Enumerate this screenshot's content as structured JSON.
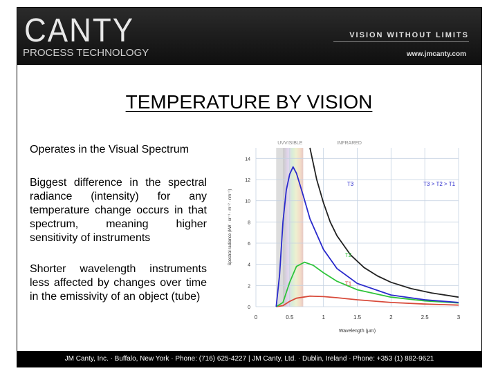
{
  "header": {
    "logo": "CANTY",
    "subtitle": "PROCESS TECHNOLOGY",
    "tagline": "VISION WITHOUT LIMITS",
    "website": "www.jmcanty.com"
  },
  "slide": {
    "title": "TEMPERATURE BY VISION",
    "paragraphs": [
      "Operates in the Visual Spectrum",
      "Biggest difference in the spectral radiance (intensity) for any temperature change occurs in that spectrum, meaning higher sensitivity of instruments",
      "Shorter wavelength instruments less affected by changes over time in the emissivity of an object (tube)"
    ]
  },
  "footer": {
    "text": "JM Canty, Inc. · Buffalo, New York · Phone: (716) 625-4227 | JM Canty, Ltd. · Dublin, Ireland · Phone: +353 (1) 882-9621"
  },
  "chart_data": {
    "type": "line",
    "xlabel": "Wavelength (μm)",
    "ylabel": "Spectral radiance (kW · sr⁻¹ · m⁻² · nm⁻¹)",
    "xlim": [
      0,
      3
    ],
    "ylim": [
      0,
      15
    ],
    "xticks": [
      "0",
      "0.5",
      "1",
      "1.5",
      "2",
      "2.5",
      "3"
    ],
    "yticks": [
      "0",
      "2",
      "4",
      "6",
      "8",
      "10",
      "12",
      "14"
    ],
    "grid": true,
    "regions": [
      {
        "label": "UV",
        "range": [
          0.3,
          0.4
        ]
      },
      {
        "label": "VISIBLE",
        "range": [
          0.4,
          0.7
        ]
      },
      {
        "label": "INFRARED",
        "range": [
          0.7,
          3.0
        ]
      }
    ],
    "annotation": "T3 > T2 > T1",
    "series": [
      {
        "name": "T1",
        "color": "#d84a3a",
        "x": [
          0.3,
          0.4,
          0.5,
          0.6,
          0.8,
          1.0,
          1.2,
          1.5,
          2.0,
          2.5,
          3.0
        ],
        "y": [
          0.0,
          0.1,
          0.5,
          0.8,
          1.0,
          0.95,
          0.85,
          0.65,
          0.4,
          0.25,
          0.15
        ]
      },
      {
        "name": "T2",
        "color": "#2ec43a",
        "x": [
          0.3,
          0.4,
          0.5,
          0.6,
          0.72,
          0.85,
          1.0,
          1.2,
          1.5,
          2.0,
          2.5,
          3.0
        ],
        "y": [
          0.0,
          0.4,
          2.3,
          3.8,
          4.2,
          3.9,
          3.2,
          2.4,
          1.6,
          0.9,
          0.55,
          0.35
        ]
      },
      {
        "name": "T3",
        "color": "#2a2acc",
        "x": [
          0.3,
          0.35,
          0.4,
          0.45,
          0.5,
          0.55,
          0.6,
          0.7,
          0.8,
          1.0,
          1.2,
          1.5,
          2.0,
          2.5,
          3.0
        ],
        "y": [
          0.0,
          3.0,
          8.0,
          11.0,
          12.5,
          13.2,
          12.6,
          10.5,
          8.3,
          5.4,
          3.6,
          2.2,
          1.1,
          0.65,
          0.4
        ]
      },
      {
        "name": "",
        "color": "#222222",
        "x": [
          0.8,
          0.85,
          0.9,
          1.0,
          1.1,
          1.2,
          1.4,
          1.6,
          1.8,
          2.0,
          2.3,
          2.6,
          3.0
        ],
        "y": [
          15.0,
          13.5,
          12.0,
          9.8,
          8.0,
          6.7,
          4.9,
          3.7,
          2.9,
          2.3,
          1.7,
          1.3,
          0.9
        ]
      }
    ]
  }
}
